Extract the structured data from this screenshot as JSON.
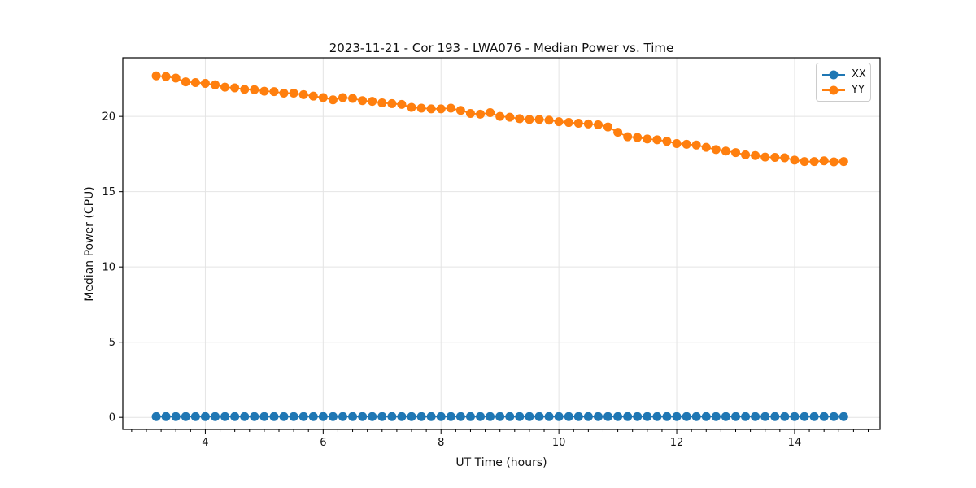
{
  "chart_data": {
    "type": "line",
    "title": "2023-11-21 - Cor 193 - LWA076 - Median Power vs. Time",
    "xlabel": "UT Time (hours)",
    "ylabel": "Median Power (CPU)",
    "xlim": [
      2.6,
      15.45
    ],
    "ylim": [
      -0.8,
      23.9
    ],
    "xticks": [
      4,
      6,
      8,
      10,
      12,
      14
    ],
    "yticks": [
      0,
      5,
      10,
      15,
      20
    ],
    "minor_xtick_step": 0.25,
    "grid": true,
    "grid_color": "#e4e4e4",
    "axis_color": "#000000",
    "legend_position": "upper right",
    "x": [
      3.167,
      3.333,
      3.5,
      3.667,
      3.833,
      4.0,
      4.167,
      4.333,
      4.5,
      4.667,
      4.833,
      5.0,
      5.167,
      5.333,
      5.5,
      5.667,
      5.833,
      6.0,
      6.167,
      6.333,
      6.5,
      6.667,
      6.833,
      7.0,
      7.167,
      7.333,
      7.5,
      7.667,
      7.833,
      8.0,
      8.167,
      8.333,
      8.5,
      8.667,
      8.833,
      9.0,
      9.167,
      9.333,
      9.5,
      9.667,
      9.833,
      10.0,
      10.167,
      10.333,
      10.5,
      10.667,
      10.833,
      11.0,
      11.167,
      11.333,
      11.5,
      11.667,
      11.833,
      12.0,
      12.167,
      12.333,
      12.5,
      12.667,
      12.833,
      13.0,
      13.167,
      13.333,
      13.5,
      13.667,
      13.833,
      14.0,
      14.167,
      14.333,
      14.5,
      14.667,
      14.833
    ],
    "series": [
      {
        "name": "XX",
        "color": "#1f77b4",
        "values": [
          0.05,
          0.05,
          0.05,
          0.05,
          0.05,
          0.05,
          0.05,
          0.05,
          0.05,
          0.05,
          0.05,
          0.05,
          0.05,
          0.05,
          0.05,
          0.05,
          0.05,
          0.05,
          0.05,
          0.05,
          0.05,
          0.05,
          0.05,
          0.05,
          0.05,
          0.05,
          0.05,
          0.05,
          0.05,
          0.05,
          0.05,
          0.05,
          0.05,
          0.05,
          0.05,
          0.05,
          0.05,
          0.05,
          0.05,
          0.05,
          0.05,
          0.05,
          0.05,
          0.05,
          0.05,
          0.05,
          0.05,
          0.05,
          0.05,
          0.05,
          0.05,
          0.05,
          0.05,
          0.05,
          0.05,
          0.05,
          0.05,
          0.05,
          0.05,
          0.05,
          0.05,
          0.05,
          0.05,
          0.05,
          0.05,
          0.05,
          0.05,
          0.05,
          0.05,
          0.05,
          0.05
        ]
      },
      {
        "name": "YY",
        "color": "#ff7f0e",
        "values": [
          22.7,
          22.65,
          22.55,
          22.3,
          22.25,
          22.2,
          22.1,
          21.95,
          21.9,
          21.8,
          21.78,
          21.68,
          21.65,
          21.55,
          21.55,
          21.45,
          21.35,
          21.25,
          21.1,
          21.25,
          21.2,
          21.05,
          21.0,
          20.9,
          20.85,
          20.8,
          20.6,
          20.55,
          20.5,
          20.5,
          20.55,
          20.4,
          20.2,
          20.15,
          20.25,
          20.0,
          19.95,
          19.85,
          19.8,
          19.8,
          19.75,
          19.65,
          19.6,
          19.55,
          19.5,
          19.45,
          19.3,
          18.95,
          18.65,
          18.6,
          18.5,
          18.45,
          18.35,
          18.2,
          18.15,
          18.1,
          17.95,
          17.8,
          17.7,
          17.6,
          17.45,
          17.4,
          17.3,
          17.28,
          17.25,
          17.1,
          17.0,
          17.0,
          17.05,
          16.98,
          17.0
        ]
      }
    ]
  }
}
